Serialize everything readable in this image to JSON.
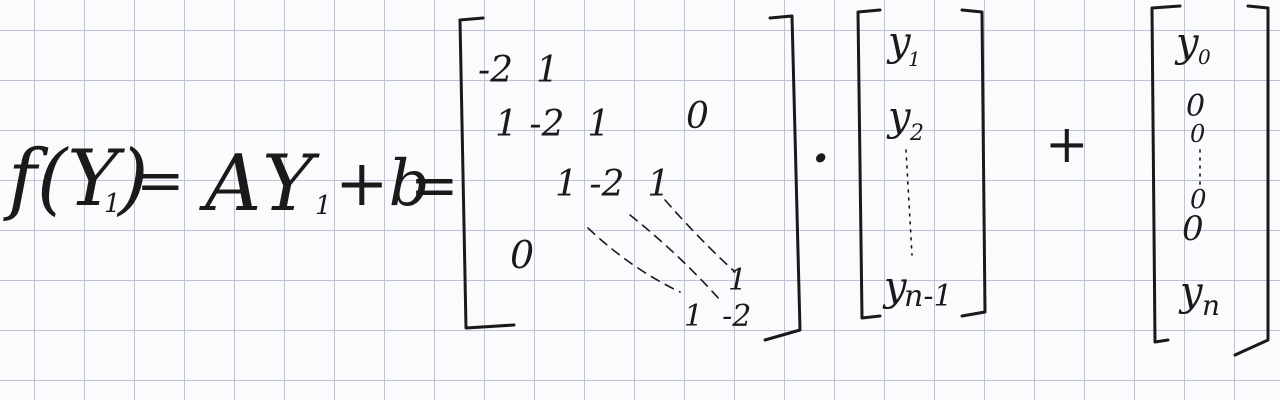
{
  "equation": {
    "lhs": "f(Y",
    "lhs_sub": "1",
    "lhs_close": ")",
    "equals": "=",
    "A": "A",
    "Y": "Y",
    "Y_sub": "1",
    "plus_b": "+b",
    "equals2": "=",
    "dot_operator": "·",
    "plus": "+"
  },
  "matrix": {
    "row1": "-2  1",
    "row2": "1 -2  1",
    "row3": "1 -2  1",
    "upper_zero": "0",
    "lower_zero": "0",
    "last_sup": "1",
    "last_row": "1  -2"
  },
  "vector_y": {
    "y1": "y",
    "y1_sub": "1",
    "y2": "y",
    "y2_sub": "2",
    "yn1": "y",
    "yn1_sub": "n-1"
  },
  "vector_b": {
    "y0": "y",
    "y0_sub": "0",
    "z1": "0",
    "z2": "0",
    "z3": "0",
    "z4": "0",
    "yn": "y",
    "yn_sub": "n"
  }
}
